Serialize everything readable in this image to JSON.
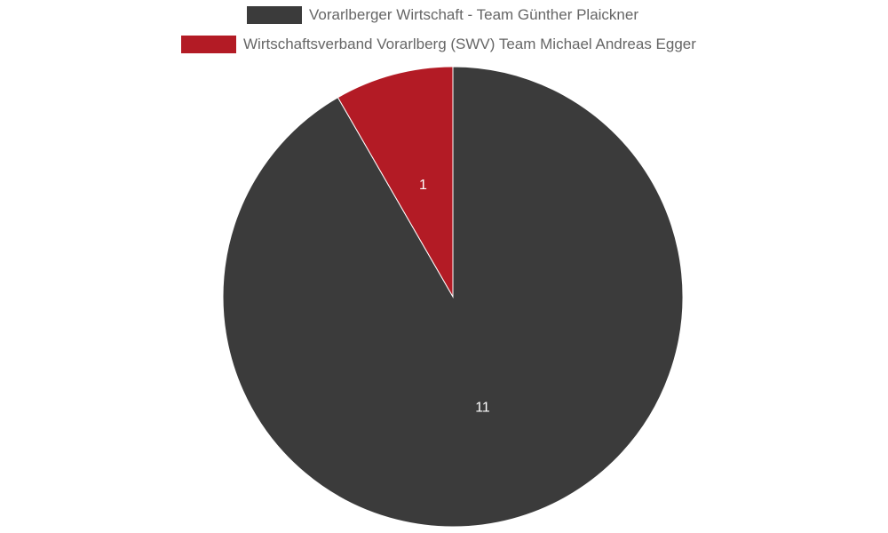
{
  "chart_data": {
    "type": "pie",
    "title": "",
    "legend_position": "top",
    "start_angle": "top, clockwise",
    "series": [
      {
        "name": "Vorarlberger Wirtschaft - Team Günther Plaickner",
        "value": 11,
        "label": "11",
        "color": "#3b3b3b"
      },
      {
        "name": "Wirtschaftsverband Vorarlberg (SWV) Team Michael Andreas Egger",
        "value": 1,
        "label": "1",
        "color": "#b31b25"
      }
    ]
  }
}
